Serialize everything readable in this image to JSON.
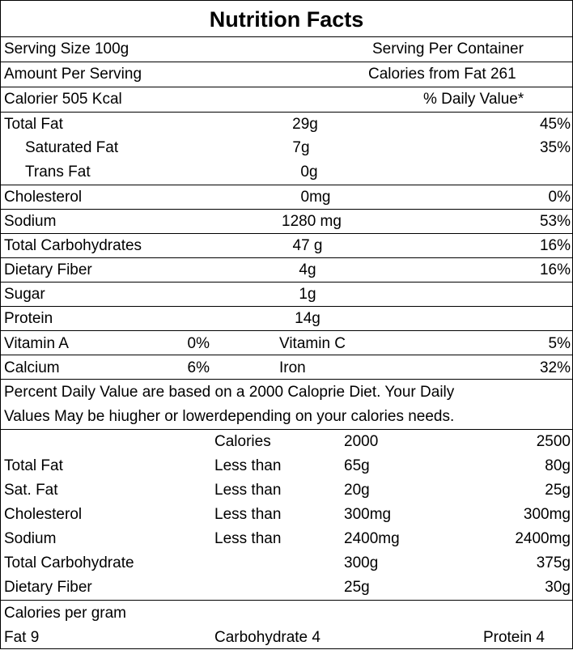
{
  "title": "Nutrition Facts",
  "header": {
    "serving_size": "Serving Size 100g",
    "serving_per_container": "Serving Per  Container",
    "amount_per_serving": "Amount Per Serving",
    "calories_from_fat": "Calories from Fat 261",
    "calories": "Calorier 505 Kcal",
    "daily_value_header": "% Daily Value*"
  },
  "nutrients": [
    {
      "name": "Total Fat",
      "amount": "29g",
      "dv": "45%"
    },
    {
      "name": "Saturated Fat",
      "amount": "7g",
      "dv": "35%"
    },
    {
      "name": "Trans Fat",
      "amount": "0g",
      "dv": ""
    },
    {
      "name": "Cholesterol",
      "amount": "0mg",
      "dv": "0%"
    },
    {
      "name": "Sodium",
      "amount": "1280 mg",
      "dv": "53%"
    },
    {
      "name": "Total Carbohydrates",
      "amount": "47 g",
      "dv": "16%"
    },
    {
      "name": "Dietary Fiber",
      "amount": "4g",
      "dv": "16%"
    },
    {
      "name": "Sugar",
      "amount": "1g",
      "dv": ""
    },
    {
      "name": "Protein",
      "amount": "14g",
      "dv": ""
    }
  ],
  "vitamins": [
    {
      "left_name": "Vitamin A",
      "left_value": "0%",
      "right_name": "Vitamin C",
      "right_value": "5%"
    },
    {
      "left_name": "Calcium",
      "left_value": "6%",
      "right_name": "Iron",
      "right_value": "32%"
    }
  ],
  "footnote": {
    "line1": "Percent  Daily  Value are based on a  2000 Caloprie Diet. Your Daily",
    "line2": "Values May be hiugher or lowerdepending on your calories needs."
  },
  "reference": {
    "header": {
      "col1": "Calories",
      "col2": "2000",
      "col3": "2500"
    },
    "rows": [
      {
        "name": "Total Fat",
        "limit": "Less than",
        "v2000": "65g",
        "v2500": "80g"
      },
      {
        "name": "Sat. Fat",
        "limit": "Less than",
        "v2000": "20g",
        "v2500": "25g"
      },
      {
        "name": "Cholesterol",
        "limit": "Less than",
        "v2000": "300mg",
        "v2500": "300mg"
      },
      {
        "name": "Sodium",
        "limit": "Less than",
        "v2000": "2400mg",
        "v2500": "2400mg"
      },
      {
        "name": "Total Carbohydrate",
        "limit": "",
        "v2000": "300g",
        "v2500": "375g"
      },
      {
        "name": "Dietary Fiber",
        "limit": "",
        "v2000": "25g",
        "v2500": "30g"
      }
    ]
  },
  "calories_per_gram": {
    "heading": "Calories per gram",
    "fat": "Fat 9",
    "carbohydrate": "Carbohydrate 4",
    "protein": "Protein 4"
  }
}
